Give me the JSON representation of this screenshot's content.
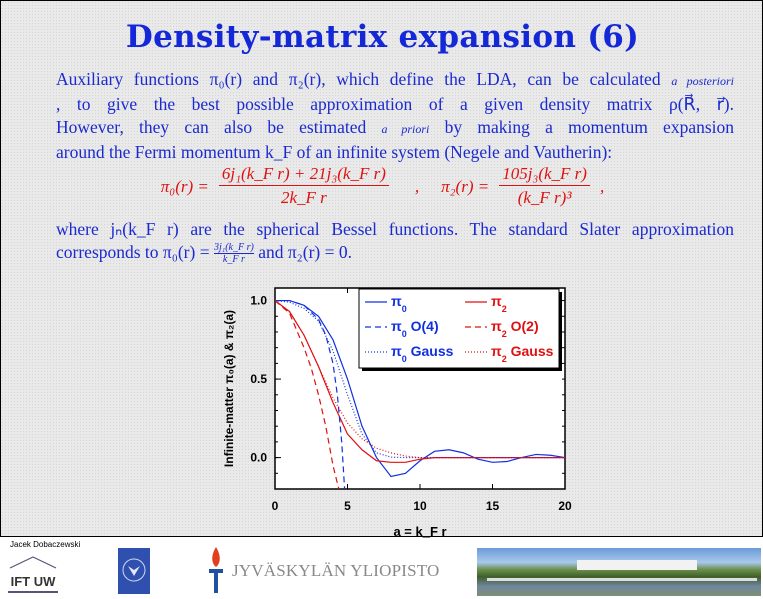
{
  "title": "Density-matrix expansion (6)",
  "paragraph1": {
    "lines": [
      "Auxiliary functions π₀(r) and π₂(r), which define the LDA, can be calculated",
      "a posteriori",
      ", to give the best possible approximation of a given density matrix ρ(R⃗, r⃗).",
      "However, they can also be estimated",
      "a priori",
      "by making a momentum expansion",
      "around the Fermi momentum k_F of an infinite system (Negele and Vautherin):"
    ]
  },
  "formula": {
    "pi0_lhs": "π₀(r) =",
    "pi0_num": "6j₁(k_F r) + 21j₃(k_F r)",
    "pi0_den": "2k_F r",
    "separator": ",",
    "pi2_lhs": "π₂(r) =",
    "pi2_num": "105j₃(k_F r)",
    "pi2_den": "(k_F r)³",
    "end": ","
  },
  "paragraph2": {
    "line1": "where jₙ(k_F r) are the spherical Bessel functions. The standard Slater approximation",
    "line2_a": "corresponds to π₀(r) =",
    "line2_frac_num": "3j₁(k_F r)",
    "line2_frac_den": "k_F r",
    "line2_b": "and π₂(r) = 0."
  },
  "chart_data": {
    "type": "line",
    "xlabel": "a = k_F r",
    "ylabel": "Infinite-matter π₀(a) & π₂(a)",
    "xlim": [
      0,
      20
    ],
    "ylim": [
      -0.2,
      1.08
    ],
    "xticks": [
      "0",
      "5",
      "10",
      "15",
      "20"
    ],
    "yticks": [
      "0.0",
      "0.5",
      "1.0"
    ],
    "legend_placement": "top-right",
    "series": [
      {
        "name": "π0",
        "label": "π",
        "sub": "0",
        "suffix": "",
        "color": "#1030e0",
        "dash": "solid",
        "x": [
          0,
          1,
          2,
          3,
          4,
          5,
          6,
          7,
          8,
          9,
          10,
          11,
          12,
          13,
          14,
          15,
          16,
          17,
          18,
          19,
          20
        ],
        "y": [
          1,
          1,
          0.97,
          0.9,
          0.75,
          0.5,
          0.2,
          0.0,
          -0.12,
          -0.1,
          -0.02,
          0.04,
          0.05,
          0.03,
          -0.01,
          -0.03,
          -0.025,
          0.0,
          0.02,
          0.015,
          0
        ]
      },
      {
        "name": "π2",
        "label": "π",
        "sub": "2",
        "suffix": "",
        "color": "#e01010",
        "dash": "solid",
        "x": [
          0,
          1,
          2,
          3,
          4,
          5,
          6,
          7,
          8,
          9,
          10,
          11,
          20
        ],
        "y": [
          1,
          0.93,
          0.78,
          0.58,
          0.35,
          0.15,
          0.05,
          -0.02,
          -0.03,
          -0.03,
          -0.01,
          0,
          0
        ]
      },
      {
        "name": "π0 O(4)",
        "label": "π",
        "sub": "0",
        "suffix": " O(4)",
        "color": "#1030e0",
        "dash": "6,4",
        "x": [
          0,
          1,
          2,
          3,
          3.5,
          4,
          4.3,
          4.6,
          4.8
        ],
        "y": [
          1,
          1,
          0.97,
          0.88,
          0.78,
          0.6,
          0.4,
          0.1,
          -0.2
        ]
      },
      {
        "name": "π2 O(2)",
        "label": "π",
        "sub": "2",
        "suffix": " O(2)",
        "color": "#e01010",
        "dash": "6,4",
        "x": [
          0,
          1,
          2,
          2.5,
          3,
          3.5,
          4,
          4.4
        ],
        "y": [
          1,
          0.92,
          0.7,
          0.57,
          0.4,
          0.2,
          -0.05,
          -0.2
        ]
      },
      {
        "name": "π0 Gauss",
        "label": "π",
        "sub": "0",
        "suffix": " Gauss",
        "color": "#1030e0",
        "dash": "1,2",
        "x": [
          0,
          1,
          2,
          3,
          4,
          5,
          6,
          7,
          8,
          9,
          20
        ],
        "y": [
          1,
          0.99,
          0.95,
          0.87,
          0.68,
          0.4,
          0.15,
          0.03,
          0.003,
          0,
          0
        ]
      },
      {
        "name": "π2 Gauss",
        "label": "π",
        "sub": "2",
        "suffix": " Gauss",
        "color": "#e01010",
        "dash": "1,2",
        "x": [
          0,
          1,
          2,
          3,
          4,
          5,
          6,
          7,
          8,
          9,
          10,
          20
        ],
        "y": [
          1,
          0.93,
          0.78,
          0.58,
          0.38,
          0.22,
          0.12,
          0.06,
          0.03,
          0.01,
          0,
          0
        ]
      }
    ]
  },
  "footer": {
    "author": "Jacek Dobaczewski",
    "ift_logo": "IFT UW",
    "university": "JYVÄSKYLÄN YLIOPISTO"
  },
  "colors": {
    "title": "#1428d8",
    "text": "#1a2ad0",
    "formula": "#e01010"
  }
}
